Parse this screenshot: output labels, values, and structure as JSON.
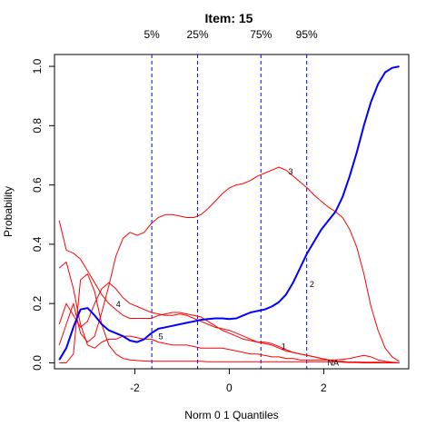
{
  "chart_data": {
    "type": "line",
    "title": "Item:  15",
    "xlabel": "Norm 0 1 Quantiles",
    "ylabel": "Probability",
    "xlim": [
      -3.7,
      3.8
    ],
    "ylim": [
      -0.02,
      1.04
    ],
    "xticks": [
      -2,
      0,
      2
    ],
    "yticks": [
      0.0,
      0.2,
      0.4,
      0.6,
      0.8,
      1.0
    ],
    "xtick_labels": [
      "-2",
      "0",
      "2"
    ],
    "ytick_labels": [
      "0.0",
      "0.2",
      "0.4",
      "0.6",
      "0.8",
      "1.0"
    ],
    "quantiles": [
      {
        "label": "5%",
        "x": -1.64
      },
      {
        "label": "25%",
        "x": -0.67
      },
      {
        "label": "75%",
        "x": 0.67
      },
      {
        "label": "95%",
        "x": 1.64
      }
    ],
    "colors": {
      "key_option": "#0000ff",
      "distractor": "#ff0000",
      "quantile_line": "#0000ff",
      "frame": "#000000"
    },
    "series": [
      {
        "name": "2",
        "color": "#0000ff",
        "x": [
          -3.6,
          -3.45,
          -3.3,
          -3.15,
          -3.0,
          -2.85,
          -2.7,
          -2.55,
          -2.4,
          -2.25,
          -2.1,
          -1.95,
          -1.8,
          -1.65,
          -1.5,
          -1.35,
          -1.2,
          -1.05,
          -0.9,
          -0.75,
          -0.6,
          -0.45,
          -0.3,
          -0.15,
          0.0,
          0.15,
          0.3,
          0.45,
          0.6,
          0.75,
          0.9,
          1.05,
          1.2,
          1.35,
          1.5,
          1.65,
          1.8,
          1.95,
          2.1,
          2.25,
          2.4,
          2.55,
          2.7,
          2.85,
          3.0,
          3.15,
          3.3,
          3.45,
          3.6
        ],
        "values": [
          0.01,
          0.05,
          0.12,
          0.18,
          0.185,
          0.16,
          0.13,
          0.11,
          0.1,
          0.09,
          0.075,
          0.07,
          0.08,
          0.1,
          0.115,
          0.12,
          0.125,
          0.13,
          0.135,
          0.14,
          0.145,
          0.148,
          0.15,
          0.15,
          0.148,
          0.15,
          0.16,
          0.17,
          0.175,
          0.18,
          0.19,
          0.205,
          0.23,
          0.27,
          0.32,
          0.37,
          0.41,
          0.45,
          0.48,
          0.51,
          0.56,
          0.63,
          0.71,
          0.8,
          0.88,
          0.94,
          0.98,
          0.995,
          1.0
        ]
      },
      {
        "name": "3",
        "color": "#ff0000",
        "x": [
          -3.6,
          -3.45,
          -3.3,
          -3.15,
          -3.0,
          -2.85,
          -2.7,
          -2.55,
          -2.4,
          -2.25,
          -2.1,
          -1.95,
          -1.8,
          -1.65,
          -1.5,
          -1.35,
          -1.2,
          -1.05,
          -0.9,
          -0.75,
          -0.6,
          -0.45,
          -0.3,
          -0.15,
          0.0,
          0.15,
          0.3,
          0.45,
          0.6,
          0.75,
          0.9,
          1.05,
          1.2,
          1.35,
          1.5,
          1.65,
          1.8,
          1.95,
          2.1,
          2.25,
          2.4,
          2.55,
          2.7,
          2.85,
          3.0,
          3.15,
          3.3,
          3.45,
          3.6
        ],
        "values": [
          0.06,
          0.13,
          0.2,
          0.1,
          0.07,
          0.09,
          0.17,
          0.26,
          0.36,
          0.42,
          0.44,
          0.43,
          0.44,
          0.47,
          0.49,
          0.5,
          0.5,
          0.495,
          0.49,
          0.49,
          0.5,
          0.52,
          0.545,
          0.57,
          0.59,
          0.6,
          0.605,
          0.615,
          0.63,
          0.64,
          0.65,
          0.66,
          0.65,
          0.63,
          0.61,
          0.59,
          0.565,
          0.545,
          0.525,
          0.51,
          0.49,
          0.45,
          0.39,
          0.3,
          0.19,
          0.11,
          0.05,
          0.02,
          0.005
        ]
      },
      {
        "name": "4",
        "color": "#ff0000",
        "x": [
          -3.6,
          -3.45,
          -3.3,
          -3.15,
          -3.0,
          -2.85,
          -2.7,
          -2.55,
          -2.4,
          -2.25,
          -2.1,
          -1.95,
          -1.8,
          -1.65,
          -1.5,
          -1.35,
          -1.2,
          -1.05,
          -0.9,
          -0.75,
          -0.6,
          -0.45,
          -0.3,
          -0.15,
          0.0,
          0.15,
          0.3,
          0.45,
          0.6,
          0.75,
          0.9,
          1.05,
          1.2,
          1.35,
          1.5,
          1.65,
          1.8,
          1.95,
          2.1,
          2.25,
          2.4,
          2.55,
          2.7,
          2.85,
          3.0,
          3.15,
          3.3,
          3.45,
          3.6
        ],
        "values": [
          0.13,
          0.2,
          0.16,
          0.12,
          0.14,
          0.2,
          0.25,
          0.27,
          0.25,
          0.22,
          0.2,
          0.19,
          0.18,
          0.17,
          0.165,
          0.16,
          0.16,
          0.165,
          0.16,
          0.15,
          0.14,
          0.13,
          0.12,
          0.115,
          0.11,
          0.1,
          0.09,
          0.08,
          0.07,
          0.065,
          0.06,
          0.05,
          0.04,
          0.035,
          0.03,
          0.025,
          0.02,
          0.015,
          0.01,
          0.005,
          0.005,
          0.002,
          0.002,
          0.001,
          0.001,
          0.0,
          0.0,
          0.0,
          0.0
        ]
      },
      {
        "name": "5",
        "color": "#ff0000",
        "x": [
          -3.6,
          -3.45,
          -3.3,
          -3.15,
          -3.0,
          -2.85,
          -2.7,
          -2.55,
          -2.4,
          -2.25,
          -2.1,
          -1.95,
          -1.8,
          -1.65,
          -1.5,
          -1.35,
          -1.2,
          -1.05,
          -0.9,
          -0.75,
          -0.6,
          -0.45,
          -0.3,
          -0.15,
          0.0,
          0.15,
          0.3,
          0.45,
          0.6,
          0.75,
          0.9,
          1.05,
          1.2,
          1.35,
          1.5,
          1.65,
          1.8,
          1.95,
          2.1,
          2.25,
          2.4,
          2.55,
          2.7,
          2.85,
          3.0,
          3.15,
          3.3,
          3.45,
          3.6
        ],
        "values": [
          0.32,
          0.34,
          0.25,
          0.13,
          0.06,
          0.05,
          0.07,
          0.08,
          0.08,
          0.09,
          0.09,
          0.085,
          0.08,
          0.08,
          0.07,
          0.065,
          0.06,
          0.06,
          0.06,
          0.055,
          0.05,
          0.05,
          0.05,
          0.05,
          0.045,
          0.04,
          0.035,
          0.03,
          0.03,
          0.025,
          0.02,
          0.02,
          0.015,
          0.015,
          0.01,
          0.01,
          0.01,
          0.01,
          0.01,
          0.01,
          0.012,
          0.015,
          0.02,
          0.025,
          0.02,
          0.01,
          0.005,
          0.002,
          0.0
        ]
      },
      {
        "name": "1",
        "color": "#ff0000",
        "x": [
          -3.6,
          -3.45,
          -3.3,
          -3.15,
          -3.0,
          -2.85,
          -2.7,
          -2.55,
          -2.4,
          -2.25,
          -2.1,
          -1.95,
          -1.8,
          -1.65,
          -1.5,
          -1.35,
          -1.2,
          -1.05,
          -0.9,
          -0.75,
          -0.6,
          -0.45,
          -0.3,
          -0.15,
          0.0,
          0.15,
          0.3,
          0.45,
          0.6,
          0.75,
          0.9,
          1.05,
          1.2,
          1.35,
          1.5,
          1.65,
          1.8,
          1.95,
          2.1,
          2.25,
          2.4,
          2.55,
          2.7,
          2.85,
          3.0,
          3.15,
          3.3,
          3.45,
          3.6
        ],
        "values": [
          0.48,
          0.38,
          0.37,
          0.35,
          0.31,
          0.27,
          0.23,
          0.2,
          0.18,
          0.16,
          0.15,
          0.15,
          0.15,
          0.15,
          0.16,
          0.165,
          0.17,
          0.17,
          0.165,
          0.16,
          0.155,
          0.14,
          0.125,
          0.11,
          0.1,
          0.09,
          0.08,
          0.075,
          0.07,
          0.07,
          0.065,
          0.055,
          0.045,
          0.035,
          0.03,
          0.025,
          0.02,
          0.015,
          0.01,
          0.005,
          0.002,
          0.001,
          0.001,
          0.0,
          0.0,
          0.0,
          0.0,
          0.0,
          0.0
        ]
      },
      {
        "name": "NA",
        "color": "#ff0000",
        "x": [
          -3.6,
          -3.45,
          -3.3,
          -3.15,
          -3.0,
          -2.85,
          -2.7,
          -2.55,
          -2.4,
          -2.25,
          -2.1,
          -1.95,
          -1.8,
          -1.65,
          -1.5,
          -1.35,
          -1.2,
          -1.05,
          -0.9,
          -0.75,
          -0.6,
          -0.45,
          -0.3,
          -0.15,
          0.0,
          0.15,
          0.3,
          0.45,
          0.6,
          0.75,
          0.9,
          1.05,
          1.2,
          1.35,
          1.5,
          1.65,
          1.8,
          1.95,
          2.1,
          2.25,
          2.4,
          2.55,
          2.7,
          2.85,
          3.0,
          3.15,
          3.3,
          3.45,
          3.6
        ],
        "values": [
          0.0,
          0.0,
          0.03,
          0.28,
          0.3,
          0.24,
          0.13,
          0.06,
          0.03,
          0.015,
          0.01,
          0.008,
          0.006,
          0.005,
          0.005,
          0.005,
          0.005,
          0.005,
          0.005,
          0.005,
          0.005,
          0.004,
          0.004,
          0.004,
          0.004,
          0.004,
          0.004,
          0.004,
          0.004,
          0.004,
          0.004,
          0.004,
          0.004,
          0.004,
          0.004,
          0.004,
          0.004,
          0.004,
          0.004,
          0.004,
          0.003,
          0.003,
          0.003,
          0.002,
          0.002,
          0.002,
          0.001,
          0.001,
          0.0
        ]
      }
    ],
    "curve_labels": [
      {
        "text": "3",
        "x": 1.3,
        "y": 0.645
      },
      {
        "text": "2",
        "x": 1.75,
        "y": 0.265
      },
      {
        "text": "4",
        "x": -2.35,
        "y": 0.198
      },
      {
        "text": "5",
        "x": -1.45,
        "y": 0.088
      },
      {
        "text": "1",
        "x": 1.15,
        "y": 0.055
      },
      {
        "text": "NA",
        "x": 2.2,
        "y": 0.0
      }
    ]
  }
}
